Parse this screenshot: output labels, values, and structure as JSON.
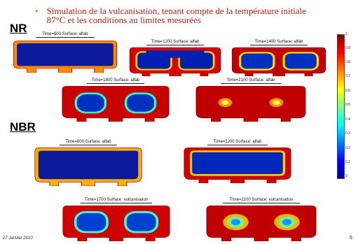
{
  "title": {
    "bullet": "•",
    "line1": "Simulation de la vulcanisation, tenant compte de la température initiale",
    "line2": "87°C et les conditions au limites mesurées"
  },
  "sections": {
    "nr": "NR",
    "nbr": "NBR"
  },
  "simulations": {
    "nr_600": {
      "caption": "Time=600    Surface: alfab"
    },
    "nr_1200": {
      "caption": "Time=1200    Surface: alfab"
    },
    "nr_1400": {
      "caption": "Time=1400    Surface: alfab"
    },
    "nr_1800": {
      "caption": "Time=1800    Surface: alfab"
    },
    "nr_2100": {
      "caption": "Time=2100    Surface: alfab"
    },
    "nbr_600": {
      "caption": "Time=600    Surface: alfab"
    },
    "nbr_1200": {
      "caption": "Time=1200    Surface: alfab"
    },
    "nbr_1700": {
      "caption": "Time=1700    Surface: vulcanisation"
    },
    "nbr_2100": {
      "caption": "Time=2100    Surface: vulcanisation"
    }
  },
  "colorbar": {
    "ticks": [
      "1",
      "0.9",
      "0.8",
      "0.7",
      "0.6",
      "0.5",
      "0.4",
      "0.3",
      "0.2",
      "0.1",
      "0"
    ]
  },
  "footer": {
    "date": "27 Janvier 2010",
    "page": "6"
  }
}
